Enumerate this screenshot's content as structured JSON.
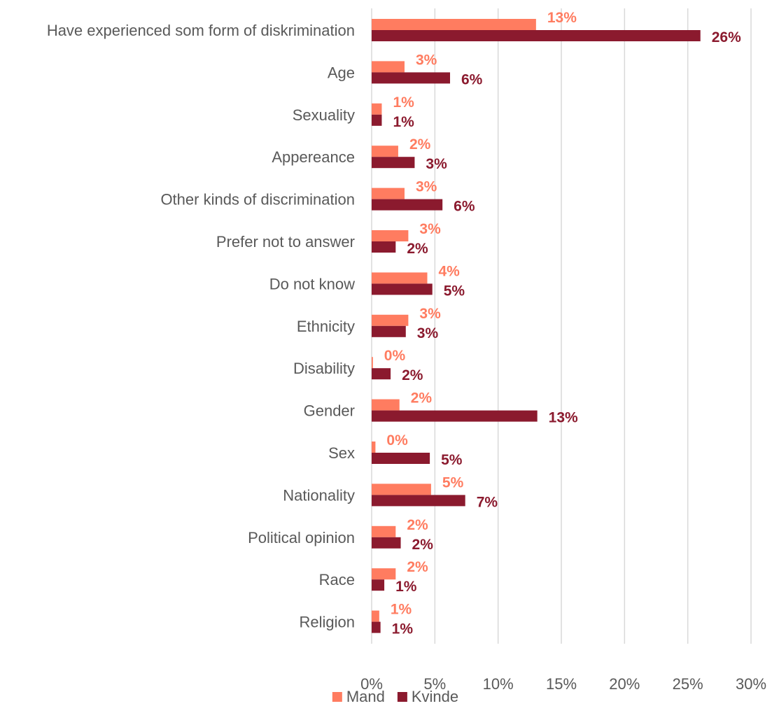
{
  "chart_data": {
    "type": "bar",
    "orientation": "horizontal",
    "title": "",
    "xlabel": "",
    "ylabel": "",
    "xlim": [
      0,
      30
    ],
    "x_ticks": [
      "0%",
      "5%",
      "10%",
      "15%",
      "20%",
      "25%",
      "30%"
    ],
    "x_tick_values": [
      0,
      5,
      10,
      15,
      20,
      25,
      30
    ],
    "grid": "vertical",
    "legend_position": "bottom",
    "categories": [
      "Have experienced som form of diskrimination",
      "Age",
      "Sexuality",
      "Appereance",
      "Other kinds of discrimination",
      "Prefer not to answer",
      "Do not know",
      "Ethnicity",
      "Disability",
      "Gender",
      "Sex",
      "Nationality",
      "Political opinion",
      "Race",
      "Religion"
    ],
    "series": [
      {
        "name": "Mand",
        "color": "#ff7c60",
        "values": [
          13.0,
          2.6,
          0.8,
          2.1,
          2.6,
          2.9,
          4.4,
          2.9,
          0.1,
          2.2,
          0.3,
          4.7,
          1.9,
          1.9,
          0.6
        ],
        "labels": [
          "13%",
          "3%",
          "1%",
          "2%",
          "3%",
          "3%",
          "4%",
          "3%",
          "0%",
          "2%",
          "0%",
          "5%",
          "2%",
          "2%",
          "1%"
        ]
      },
      {
        "name": "Kvinde",
        "color": "#8b1a2e",
        "values": [
          26.0,
          6.2,
          0.8,
          3.4,
          5.6,
          1.9,
          4.8,
          2.7,
          1.5,
          13.1,
          4.6,
          7.4,
          2.3,
          1.0,
          0.7
        ],
        "labels": [
          "26%",
          "6%",
          "1%",
          "3%",
          "6%",
          "2%",
          "5%",
          "3%",
          "2%",
          "13%",
          "5%",
          "7%",
          "2%",
          "1%",
          "1%"
        ]
      }
    ]
  }
}
